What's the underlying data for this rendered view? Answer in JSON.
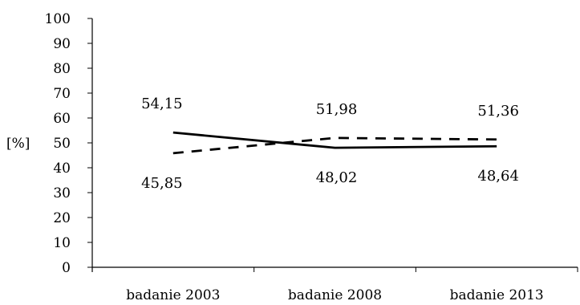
{
  "chart_data": {
    "type": "line",
    "title": "",
    "xlabel": "",
    "ylabel": "[%]",
    "ylim": [
      0,
      100
    ],
    "yticks": [
      "0",
      "10",
      "20",
      "30",
      "40",
      "50",
      "60",
      "70",
      "80",
      "90",
      "100"
    ],
    "categories": [
      "badanie 2003",
      "badanie 2008",
      "badanie 2013"
    ],
    "grid": false,
    "legend": "none",
    "series": [
      {
        "style": "solid",
        "values": [
          54.15,
          48.02,
          48.64
        ],
        "labels": [
          "54,15",
          "48,02",
          "48,64"
        ]
      },
      {
        "style": "dashed",
        "values": [
          45.85,
          51.98,
          51.36
        ],
        "labels": [
          "45,85",
          "51,98",
          "51,36"
        ]
      }
    ]
  }
}
